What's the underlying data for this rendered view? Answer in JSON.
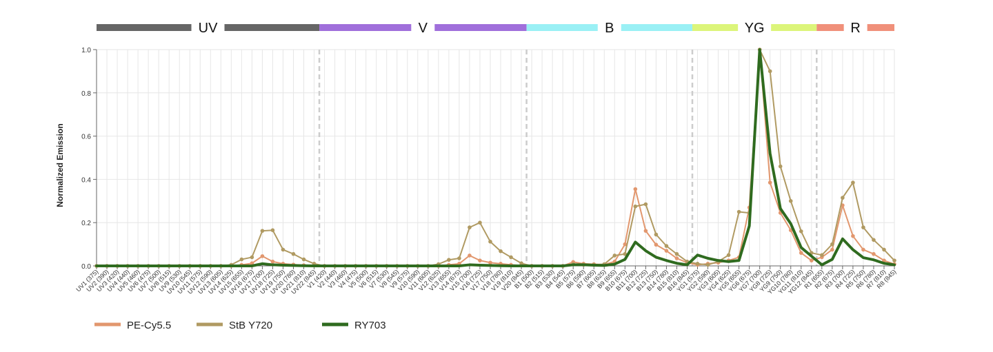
{
  "chart_data": {
    "type": "line",
    "ylabel": "Normalized Emission",
    "xlabel": "",
    "ylim": [
      0,
      1.0
    ],
    "yticks": [
      0.0,
      0.2,
      0.4,
      0.6,
      0.8,
      1.0
    ],
    "ytick_labels": [
      "0.0",
      "0.2",
      "0.4",
      "0.6",
      "0.8",
      "1.0"
    ],
    "grid": true,
    "legend_position": "bottom-left",
    "laser_bands": [
      {
        "label": "UV",
        "color": "#666666",
        "start": 0,
        "end": 22
      },
      {
        "label": "V",
        "color": "#a06fdb",
        "start": 22,
        "end": 42
      },
      {
        "label": "B",
        "color": "#9af0f5",
        "start": 42,
        "end": 58
      },
      {
        "label": "YG",
        "color": "#dcf57a",
        "start": 58,
        "end": 70
      },
      {
        "label": "R",
        "color": "#f0907a",
        "start": 70,
        "end": 78
      }
    ],
    "categories": [
      "UV1 (375)",
      "UV2 (390)",
      "UV3 (420)",
      "UV4 (440)",
      "UV5 (460)",
      "UV6 (475)",
      "UV7 (500)",
      "UV8 (515)",
      "UV9 (530)",
      "UV10 (545)",
      "UV11 (575)",
      "UV12 (590)",
      "UV13 (605)",
      "UV14 (625)",
      "UV15 (655)",
      "UV16 (675)",
      "UV17 (700)",
      "UV18 (725)",
      "UV19 (750)",
      "UV20 (780)",
      "UV21 (810)",
      "UV22 (845)",
      "V1 (420)",
      "V2 (440)",
      "V3 (460)",
      "V4 (475)",
      "V5 (500)",
      "V6 (515)",
      "V7 (530)",
      "V8 (545)",
      "V9 (575)",
      "V10 (590)",
      "V11 (605)",
      "V12 (625)",
      "V13 (655)",
      "V14 (675)",
      "V15 (700)",
      "V16 (725)",
      "V17 (750)",
      "V18 (780)",
      "V19 (810)",
      "V20 (845)",
      "B1 (500)",
      "B2 (515)",
      "B3 (530)",
      "B4 (545)",
      "B5 (575)",
      "B6 (590)",
      "B7 (605)",
      "B8 (625)",
      "B9 (655)",
      "B10 (675)",
      "B11 (700)",
      "B12 (725)",
      "B13 (750)",
      "B14 (780)",
      "B15 (810)",
      "B16 (845)",
      "YG1 (575)",
      "YG2 (590)",
      "YG3 (605)",
      "YG4 (625)",
      "YG5 (655)",
      "YG6 (675)",
      "YG7 (700)",
      "YG8 (725)",
      "YG9 (750)",
      "YG10 (780)",
      "YG11 (810)",
      "YG12 (845)",
      "R1 (655)",
      "R2 (675)",
      "R3 (700)",
      "R4 (725)",
      "R5 (750)",
      "R6 (780)",
      "R7 (810)",
      "R8 (845)"
    ],
    "series": [
      {
        "name": "PE-Cy5.5",
        "color": "#e2976e",
        "width": 2,
        "markers": true,
        "values": [
          0,
          0,
          0,
          0,
          0,
          0,
          0,
          0,
          0,
          0,
          0,
          0,
          0,
          0,
          0.005,
          0.012,
          0.045,
          0.02,
          0.01,
          0.006,
          0.003,
          0.002,
          0,
          0,
          0,
          0,
          0,
          0,
          0,
          0,
          0,
          0,
          0,
          0,
          0.005,
          0.01,
          0.048,
          0.025,
          0.015,
          0.01,
          0.005,
          0.002,
          0,
          0,
          0,
          0,
          0.018,
          0.01,
          0.008,
          0.006,
          0.02,
          0.1,
          0.355,
          0.162,
          0.098,
          0.07,
          0.035,
          0.015,
          0.005,
          0.01,
          0.015,
          0.025,
          0.04,
          0.27,
          1.0,
          0.385,
          0.245,
          0.165,
          0.06,
          0.025,
          0.04,
          0.075,
          0.28,
          0.138,
          0.075,
          0.055,
          0.025,
          0.008
        ]
      },
      {
        "name": "StB Y720",
        "color": "#b09a62",
        "width": 2,
        "markers": true,
        "values": [
          0,
          0,
          0,
          0,
          0,
          0,
          0,
          0,
          0,
          0,
          0,
          0,
          0,
          0.005,
          0.03,
          0.04,
          0.162,
          0.165,
          0.075,
          0.055,
          0.03,
          0.01,
          0,
          0,
          0,
          0,
          0,
          0,
          0,
          0,
          0,
          0,
          0,
          0.008,
          0.028,
          0.035,
          0.178,
          0.2,
          0.112,
          0.068,
          0.04,
          0.012,
          0,
          0,
          0,
          0,
          0.008,
          0.005,
          0.005,
          0.008,
          0.048,
          0.055,
          0.275,
          0.285,
          0.145,
          0.092,
          0.055,
          0.02,
          0.01,
          0.005,
          0.02,
          0.05,
          0.25,
          0.245,
          1.0,
          0.9,
          0.46,
          0.3,
          0.16,
          0.06,
          0.05,
          0.1,
          0.315,
          0.385,
          0.178,
          0.12,
          0.075,
          0.025
        ]
      },
      {
        "name": "RY703",
        "color": "#2f6b1f",
        "width": 4,
        "markers": false,
        "values": [
          0,
          0,
          0,
          0,
          0,
          0,
          0,
          0,
          0,
          0,
          0,
          0,
          0,
          0,
          0,
          0,
          0.01,
          0.005,
          0.003,
          0.002,
          0.001,
          0,
          0,
          0,
          0,
          0,
          0,
          0,
          0,
          0,
          0,
          0,
          0,
          0,
          0,
          0,
          0.005,
          0.003,
          0.002,
          0.001,
          0,
          0,
          0,
          0,
          0,
          0,
          0.005,
          0.005,
          0.003,
          0.002,
          0.008,
          0.03,
          0.11,
          0.07,
          0.04,
          0.025,
          0.012,
          0.005,
          0.05,
          0.035,
          0.025,
          0.02,
          0.025,
          0.185,
          1.0,
          0.52,
          0.265,
          0.195,
          0.085,
          0.045,
          0.005,
          0.03,
          0.125,
          0.075,
          0.038,
          0.028,
          0.012,
          0.005
        ]
      }
    ]
  }
}
